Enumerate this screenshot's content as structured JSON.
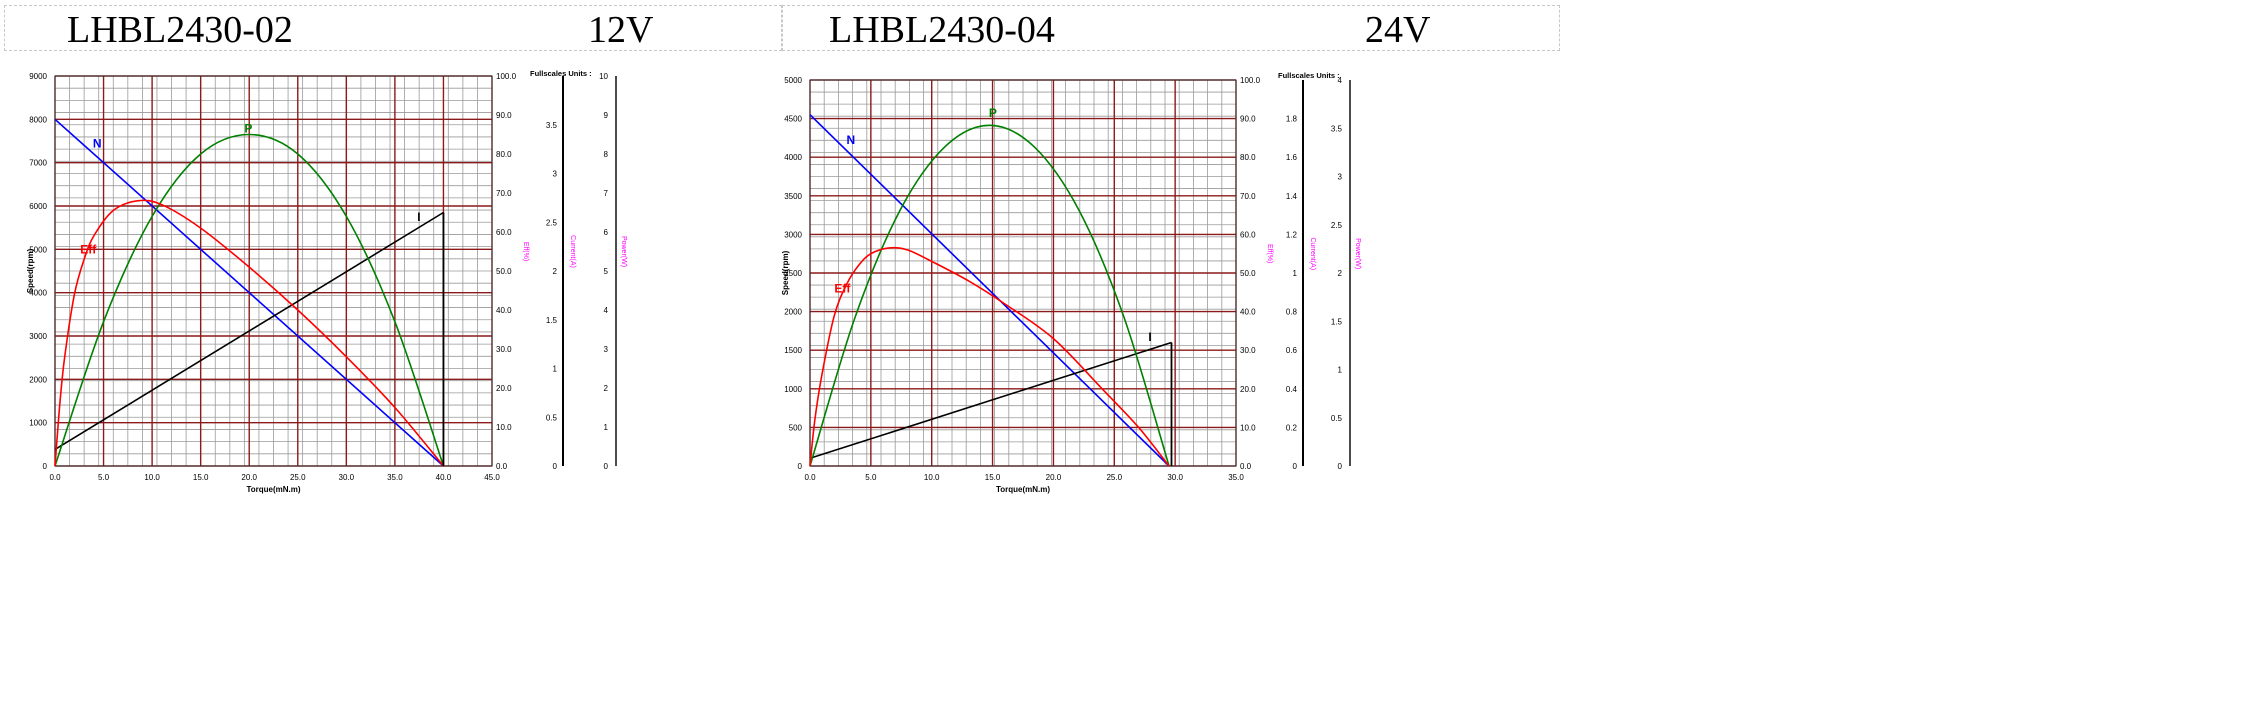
{
  "header": {
    "left": {
      "model": "LHBL2430-02",
      "voltage": "12V"
    },
    "right": {
      "model": "LHBL2430-04",
      "voltage": "24V"
    }
  },
  "chart_data": [
    {
      "type": "line",
      "model": "LHBL2430-02",
      "voltage": "12V",
      "xlabel": "Torque(mN.m)",
      "ylabel": "Speed(rpm)",
      "eff_axis_label": "Eff(%)",
      "current_axis_label": "Current(A)",
      "power_axis_label": "Power(W)",
      "fullscale_label": "Fullscales Units :",
      "xlim": [
        0,
        45
      ],
      "x_ticks": [
        "0.0",
        "5.0",
        "10.0",
        "15.0",
        "20.0",
        "25.0",
        "30.0",
        "35.0",
        "40.0",
        "45.0"
      ],
      "speed_ticks": [
        "0",
        "1000",
        "2000",
        "3000",
        "4000",
        "5000",
        "6000",
        "7000",
        "8000",
        "9000"
      ],
      "eff_ticks": [
        "0.0",
        "10.0",
        "20.0",
        "30.0",
        "40.0",
        "50.0",
        "60.0",
        "70.0",
        "80.0",
        "90.0",
        "100.0"
      ],
      "current_ticks": [
        "0",
        "0.5",
        "1",
        "1.5",
        "2",
        "2.5",
        "3",
        "3.5"
      ],
      "power_ticks": [
        "0",
        "1",
        "2",
        "3",
        "4",
        "5",
        "6",
        "7",
        "8",
        "9",
        "10"
      ],
      "speed_max": 9000,
      "eff_max": 100,
      "current_max": 4,
      "power_max": 10,
      "series": [
        {
          "name": "N",
          "color": "#0000ff",
          "axis": "speed",
          "x": [
            0,
            40
          ],
          "y": [
            8000,
            0
          ]
        },
        {
          "name": "I",
          "color": "#000000",
          "axis": "current",
          "x": [
            0,
            40
          ],
          "y": [
            0.17,
            2.6
          ]
        },
        {
          "name": "P",
          "color": "#008000",
          "axis": "power",
          "x": [
            0,
            5,
            10,
            15,
            20,
            25,
            30,
            35,
            40
          ],
          "y": [
            0,
            3.7,
            6.4,
            8.0,
            8.5,
            8.0,
            6.4,
            3.7,
            0
          ]
        },
        {
          "name": "Eff",
          "color": "#ff0000",
          "axis": "eff",
          "x": [
            0,
            0.5,
            1,
            2,
            3,
            4,
            6,
            8.5,
            11,
            15,
            20,
            25,
            30,
            35,
            40
          ],
          "y": [
            0,
            16,
            28,
            44,
            53,
            59,
            65.5,
            68,
            67,
            61,
            51,
            40,
            28,
            15,
            0
          ]
        }
      ],
      "drop_line": {
        "x": 40,
        "to_current": 2.6
      },
      "labels": [
        {
          "text": "N",
          "color": "#0000ff",
          "x": 3.9,
          "y_speed": 7350
        },
        {
          "text": "P",
          "color": "#008000",
          "x": 19.5,
          "y_speed": 7700
        },
        {
          "text": "Eff",
          "color": "#ff0000",
          "x": 2.6,
          "y_speed": 4900
        },
        {
          "text": "I",
          "color": "#000000",
          "x": 37.3,
          "y_speed": 5650
        }
      ]
    },
    {
      "type": "line",
      "model": "LHBL2430-04",
      "voltage": "24V",
      "xlabel": "Torque(mN.m)",
      "ylabel": "Speed(rpm)",
      "eff_axis_label": "Eff(%)",
      "current_axis_label": "Current(A)",
      "power_axis_label": "Power(W)",
      "fullscale_label": "Fullscales Units :",
      "xlim": [
        0,
        35
      ],
      "x_ticks": [
        "0.0",
        "5.0",
        "10.0",
        "15.0",
        "20.0",
        "25.0",
        "30.0",
        "35.0"
      ],
      "speed_ticks": [
        "0",
        "500",
        "1000",
        "1500",
        "2000",
        "2500",
        "3000",
        "3500",
        "4000",
        "4500",
        "5000"
      ],
      "eff_ticks": [
        "0.0",
        "10.0",
        "20.0",
        "30.0",
        "40.0",
        "50.0",
        "60.0",
        "70.0",
        "80.0",
        "90.0",
        "100.0"
      ],
      "current_ticks": [
        "0",
        "0.2",
        "0.4",
        "0.6",
        "0.8",
        "1",
        "1.2",
        "1.4",
        "1.6",
        "1.8"
      ],
      "power_ticks": [
        "0",
        "0.5",
        "1",
        "1.5",
        "2",
        "2.5",
        "3",
        "3.5",
        "4"
      ],
      "speed_max": 5000,
      "eff_max": 100,
      "current_max": 2,
      "power_max": 4,
      "series": [
        {
          "name": "N",
          "color": "#0000ff",
          "axis": "speed",
          "x": [
            0,
            29.5
          ],
          "y": [
            4550,
            0
          ]
        },
        {
          "name": "I",
          "color": "#000000",
          "axis": "current",
          "x": [
            0,
            29.7
          ],
          "y": [
            0.04,
            0.64
          ]
        },
        {
          "name": "P",
          "color": "#008000",
          "axis": "power",
          "x": [
            0,
            3.7,
            7.4,
            11.1,
            14.75,
            18.4,
            22.1,
            25.8,
            29.5
          ],
          "y": [
            0,
            1.54,
            2.65,
            3.31,
            3.53,
            3.31,
            2.65,
            1.54,
            0
          ]
        },
        {
          "name": "Eff",
          "color": "#ff0000",
          "axis": "eff",
          "x": [
            0,
            0.4,
            1,
            2,
            3,
            4,
            5,
            6.5,
            8,
            10,
            13,
            16,
            20,
            24,
            27,
            29.5
          ],
          "y": [
            0,
            12,
            24,
            39,
            47,
            52,
            55,
            56.5,
            56,
            53,
            48,
            42,
            33,
            20,
            10,
            0
          ]
        }
      ],
      "drop_line": {
        "x": 29.7,
        "to_current": 0.64
      },
      "labels": [
        {
          "text": "N",
          "color": "#0000ff",
          "x": 3.0,
          "y_speed": 4170
        },
        {
          "text": "P",
          "color": "#008000",
          "x": 14.7,
          "y_speed": 4520
        },
        {
          "text": "Eff",
          "color": "#ff0000",
          "x": 2.0,
          "y_speed": 2250
        },
        {
          "text": "I",
          "color": "#000000",
          "x": 27.8,
          "y_speed": 1620
        }
      ]
    }
  ]
}
